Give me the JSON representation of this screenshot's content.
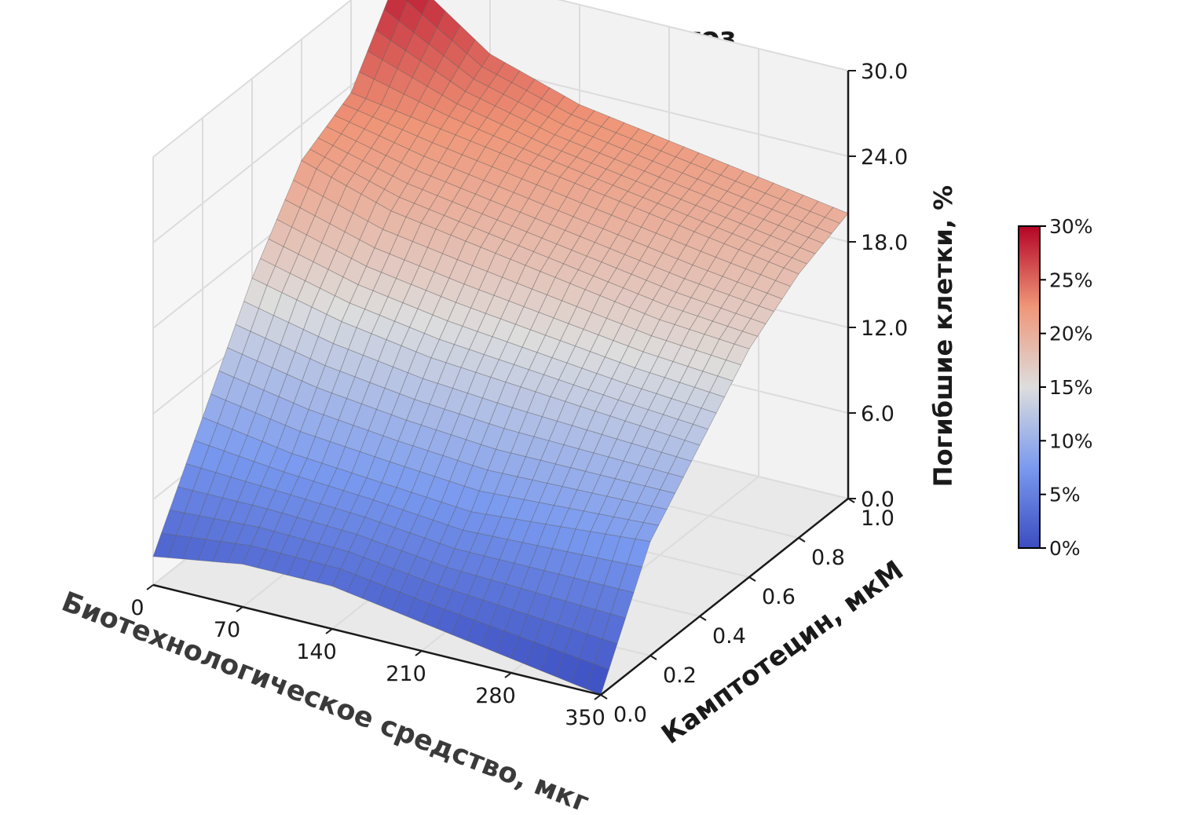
{
  "chart_data": {
    "type": "surface3d",
    "title": "Ранний апоптоз",
    "xlabel": "Биотехнологическое средство, мкг",
    "ylabel": "Камптотецин, мкМ",
    "zlabel": "Погибшие клетки, %",
    "x_ticks": [
      "0",
      "70",
      "140",
      "210",
      "280",
      "350"
    ],
    "y_ticks": [
      "0.0",
      "0.2",
      "0.4",
      "0.6",
      "0.8",
      "1.0"
    ],
    "z_ticks": [
      "0.0",
      "6.0",
      "12.0",
      "18.0",
      "24.0",
      "30.0"
    ],
    "xlim": [
      0,
      350
    ],
    "ylim": [
      0,
      1.0
    ],
    "zlim": [
      0,
      30
    ],
    "colormap": "coolwarm",
    "colorbar_ticks": [
      "0%",
      "5%",
      "10%",
      "15%",
      "20%",
      "25%",
      "30%"
    ],
    "grid": true,
    "x": [
      0,
      70,
      140,
      210,
      280,
      350
    ],
    "y": [
      0,
      0.2,
      0.4,
      0.6,
      0.8,
      1.0
    ],
    "z": [
      [
        2.0,
        3.0,
        3.0,
        2.0,
        1.0,
        0.0
      ],
      [
        9.0,
        8.0,
        7.5,
        7.0,
        7.5,
        8.0
      ],
      [
        16.0,
        14.5,
        13.5,
        13.0,
        12.5,
        12.0
      ],
      [
        21.5,
        19.5,
        18.5,
        17.5,
        16.5,
        16.0
      ],
      [
        23.5,
        22.5,
        21.5,
        20.5,
        19.5,
        18.5
      ],
      [
        29.5,
        25.0,
        23.0,
        22.0,
        21.0,
        20.0
      ]
    ],
    "colors": {
      "low": "#3b4cc0",
      "mid": "#dddddd",
      "high": "#b40426"
    }
  }
}
